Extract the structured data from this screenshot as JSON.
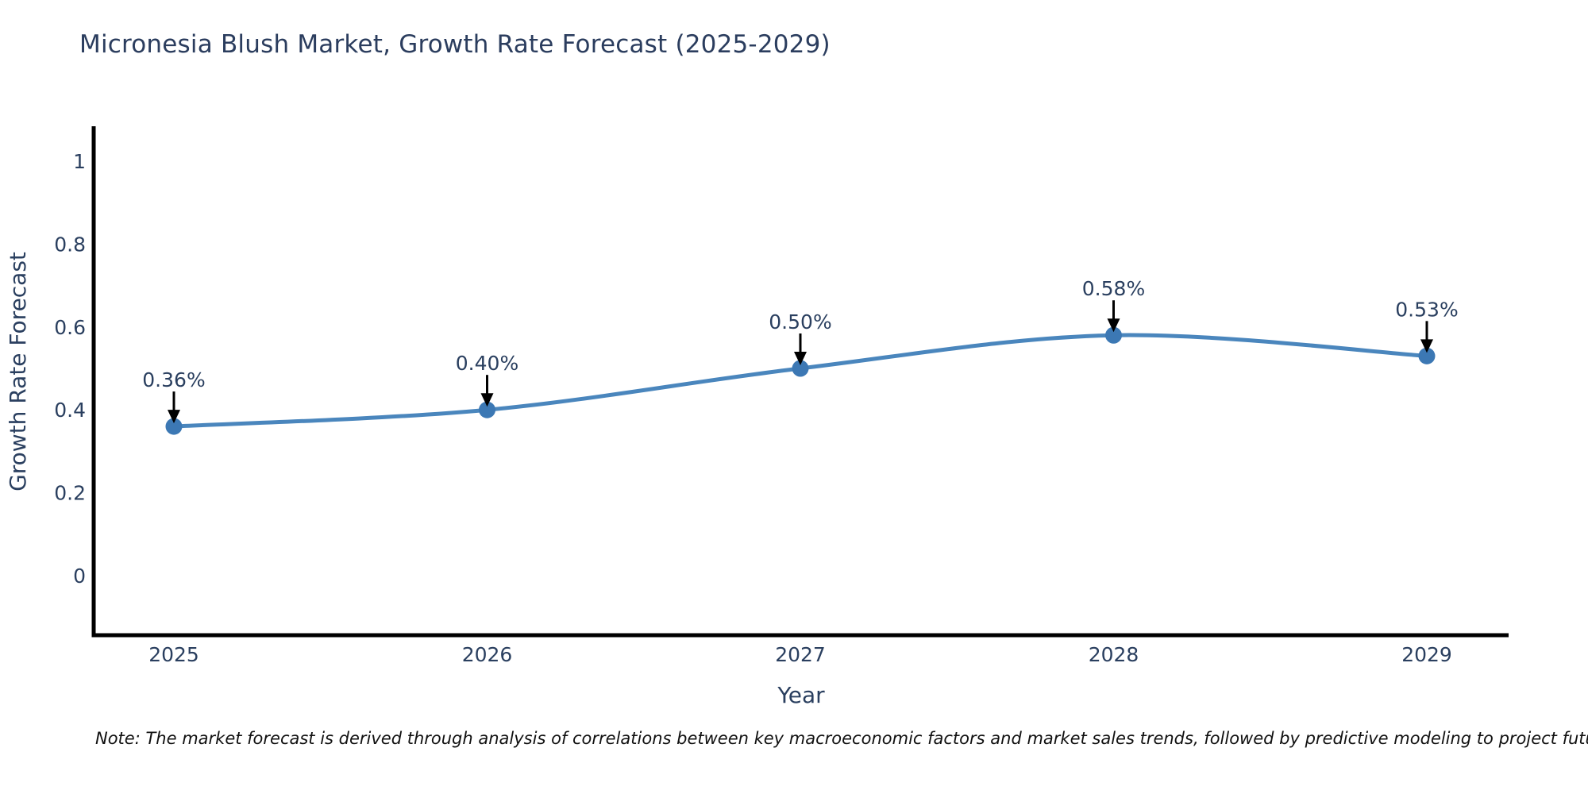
{
  "note": "Note: The market forecast is derived through analysis of correlations between key macroeconomic factors and market sales trends, followed by predictive modeling to project future sales",
  "chart_data": {
    "type": "line",
    "title": "Micronesia Blush Market, Growth Rate Forecast (2025-2029)",
    "xlabel": "Year",
    "ylabel": "Growth Rate Forecast",
    "x": [
      "2025",
      "2026",
      "2027",
      "2028",
      "2029"
    ],
    "values": [
      0.36,
      0.4,
      0.5,
      0.58,
      0.53
    ],
    "point_labels": [
      "0.36%",
      "0.40%",
      "0.50%",
      "0.58%",
      "0.53%"
    ],
    "yticks": [
      1,
      0.8,
      0.6,
      0.4,
      0.2,
      0
    ],
    "ytick_labels": [
      "1",
      "0.8",
      "0.6",
      "0.4",
      "0.2",
      "0"
    ],
    "ylim": [
      -0.146,
      1.084
    ],
    "grid": false,
    "legend": false,
    "line_shape": "spline",
    "colors": {
      "line": "#4a86bd",
      "marker": "#3c78b4",
      "axis": "#000000",
      "labels": "#2a3f5f",
      "annotation_text": "#2a3f5f",
      "arrow": "#000000",
      "title": "#2b3d5e",
      "note": "#111111",
      "background": "#ffffff"
    }
  }
}
